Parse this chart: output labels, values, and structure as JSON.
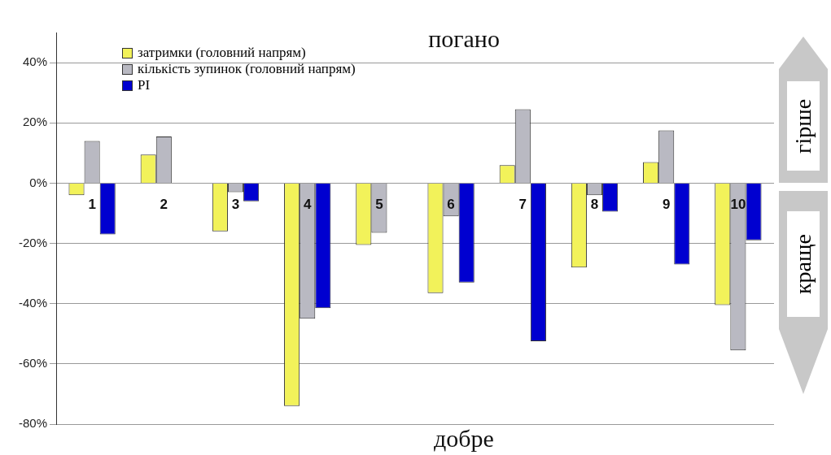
{
  "chart_data": {
    "type": "bar",
    "categories": [
      "1",
      "2",
      "3",
      "4",
      "5",
      "6",
      "7",
      "8",
      "9",
      "10"
    ],
    "series": [
      {
        "name": "затримки (головний напрям)",
        "color": "#f2f25a",
        "values": [
          -4,
          9.5,
          -16,
          -74,
          -20.5,
          -36.5,
          6,
          -28,
          7,
          -40.5
        ]
      },
      {
        "name": "кількість зупинок (головний напрям)",
        "color": "#b9b9c2",
        "values": [
          14,
          15.5,
          -3,
          -45,
          -16.5,
          -11,
          24.5,
          -4,
          17.5,
          -55.5
        ]
      },
      {
        "name": "PI",
        "color": "#0000d0",
        "values": [
          -17,
          null,
          -6,
          -41.5,
          null,
          -33,
          -52.5,
          -9.5,
          -27,
          -19
        ]
      }
    ],
    "ylim": [
      -80,
      50
    ],
    "yticks": [
      {
        "value": -80,
        "label": "-80%"
      },
      {
        "value": -60,
        "label": "-60%"
      },
      {
        "value": -40,
        "label": "-40%"
      },
      {
        "value": -20,
        "label": "-20%"
      },
      {
        "value": 0,
        "label": "0%"
      },
      {
        "value": 20,
        "label": "20%"
      },
      {
        "value": 40,
        "label": "40%"
      }
    ],
    "grid": "y",
    "legend": "top left",
    "annotations": [
      "погано",
      "добре",
      "гірше",
      "краще"
    ]
  }
}
